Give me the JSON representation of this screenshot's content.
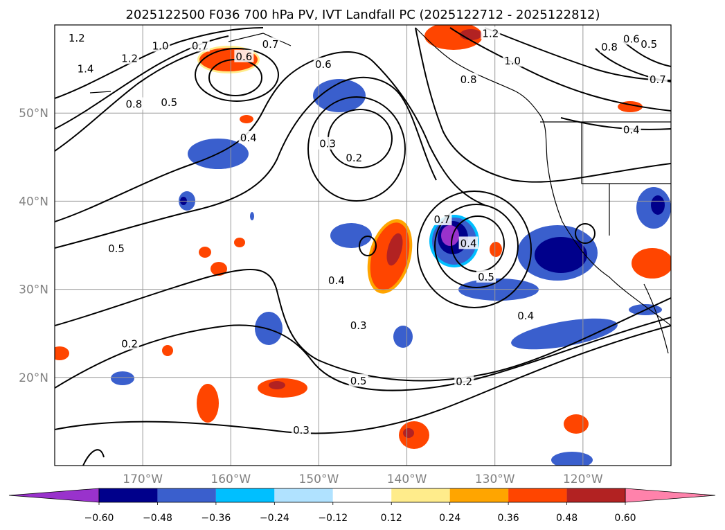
{
  "chart_data": {
    "type": "heatmap",
    "title": "2025122500 F036 700 hPa PV, IVT Landfall PC (2025122712 - 2025122812)",
    "xlabel": "",
    "ylabel": "",
    "lon_range": [
      -180,
      -110
    ],
    "lat_range": [
      10,
      60
    ],
    "grid": true,
    "lon_ticks": [
      {
        "lon": -170,
        "label": "170°W"
      },
      {
        "lon": -160,
        "label": "160°W"
      },
      {
        "lon": -150,
        "label": "150°W"
      },
      {
        "lon": -140,
        "label": "140°W"
      },
      {
        "lon": -130,
        "label": "130°W"
      },
      {
        "lon": -120,
        "label": "120°W"
      }
    ],
    "lat_ticks": [
      {
        "lat": 20,
        "label": "20°N"
      },
      {
        "lat": 30,
        "label": "30°N"
      },
      {
        "lat": 40,
        "label": "40°N"
      },
      {
        "lat": 50,
        "label": "50°N"
      }
    ],
    "colorbar": {
      "levels": [
        -0.6,
        -0.48,
        -0.36,
        -0.24,
        -0.12,
        0.12,
        0.24,
        0.36,
        0.48,
        0.6
      ],
      "tick_labels": [
        "−0.60",
        "−0.48",
        "−0.36",
        "−0.24",
        "−0.12",
        "0.12",
        "0.24",
        "0.36",
        "0.48",
        "0.60"
      ],
      "colors": [
        "#9932cc",
        "#00008b",
        "#3a5fcd",
        "#00bfff",
        "#b0e2ff",
        "#ffffff",
        "#ffec8b",
        "#ffa500",
        "#ff4500",
        "#b22222",
        "#ff82ab"
      ],
      "extend": "both"
    },
    "contour_labels": [
      {
        "text": "1.2",
        "lon": -177.5,
        "lat": 58.5
      },
      {
        "text": "1.4",
        "lon": -176.5,
        "lat": 55.0
      },
      {
        "text": "1.2",
        "lon": -171.5,
        "lat": 56.2
      },
      {
        "text": "1.0",
        "lon": -168.0,
        "lat": 57.6
      },
      {
        "text": "0.7",
        "lon": -163.5,
        "lat": 57.6
      },
      {
        "text": "0.6",
        "lon": -158.5,
        "lat": 56.4
      },
      {
        "text": "0.7",
        "lon": -155.5,
        "lat": 57.8
      },
      {
        "text": "0.8",
        "lon": -171.0,
        "lat": 51.0
      },
      {
        "text": "0.5",
        "lon": -167.0,
        "lat": 51.2
      },
      {
        "text": "0.6",
        "lon": -149.5,
        "lat": 55.5
      },
      {
        "text": "0.4",
        "lon": -158.0,
        "lat": 47.2
      },
      {
        "text": "0.3",
        "lon": -149.0,
        "lat": 46.5
      },
      {
        "text": "0.2",
        "lon": -146.0,
        "lat": 44.9
      },
      {
        "text": "1.2",
        "lon": -130.5,
        "lat": 59.0
      },
      {
        "text": "1.0",
        "lon": -128.0,
        "lat": 55.9
      },
      {
        "text": "0.8",
        "lon": -133.0,
        "lat": 53.8
      },
      {
        "text": "0.8",
        "lon": -117.0,
        "lat": 57.5
      },
      {
        "text": "0.6",
        "lon": -114.5,
        "lat": 58.4
      },
      {
        "text": "0.5",
        "lon": -112.5,
        "lat": 57.8
      },
      {
        "text": "0.7",
        "lon": -111.5,
        "lat": 53.8
      },
      {
        "text": "0.4",
        "lon": -114.5,
        "lat": 48.1
      },
      {
        "text": "0.7",
        "lon": -136.0,
        "lat": 37.9
      },
      {
        "text": "0.4",
        "lon": -133.0,
        "lat": 35.2
      },
      {
        "text": "0.5",
        "lon": -131.0,
        "lat": 31.4
      },
      {
        "text": "0.5",
        "lon": -173.0,
        "lat": 34.6
      },
      {
        "text": "0.4",
        "lon": -148.0,
        "lat": 31.0
      },
      {
        "text": "0.3",
        "lon": -145.5,
        "lat": 25.9
      },
      {
        "text": "0.4",
        "lon": -126.5,
        "lat": 27.0
      },
      {
        "text": "0.2",
        "lon": -171.5,
        "lat": 23.8
      },
      {
        "text": "0.5",
        "lon": -145.5,
        "lat": 19.6
      },
      {
        "text": "0.2",
        "lon": -133.5,
        "lat": 19.5
      },
      {
        "text": "0.3",
        "lon": -152.0,
        "lat": 14.0
      }
    ]
  }
}
